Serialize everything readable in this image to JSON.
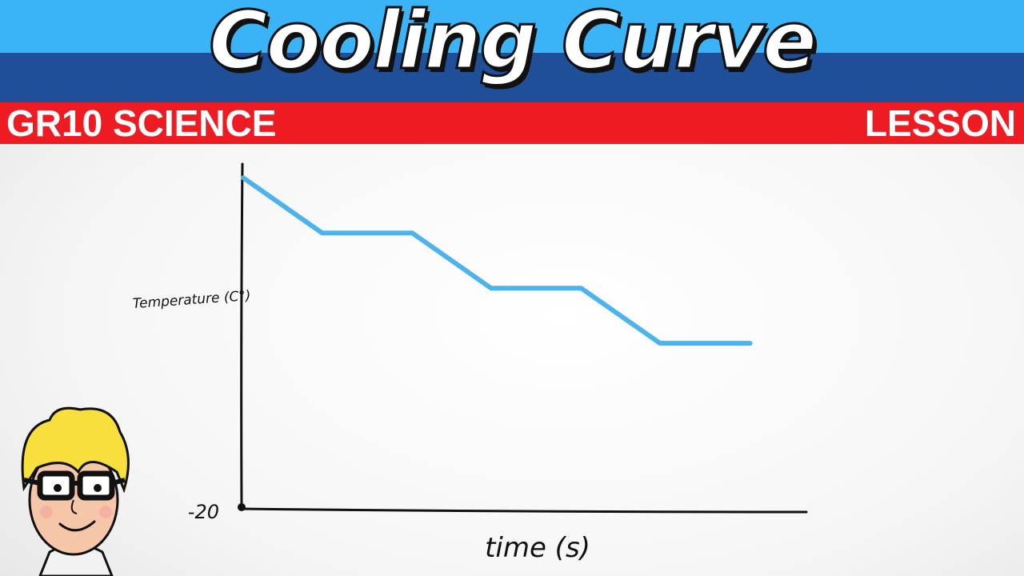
{
  "header": {
    "title": "Cooling Curve",
    "left_tag": "GR10 SCIENCE",
    "right_tag": "LESSON",
    "colors": {
      "light_band": "#3ab4f6",
      "dark_band": "#1e4f98",
      "red_band": "#ee1c22"
    }
  },
  "chart_data": {
    "type": "line",
    "title": "Cooling Curve",
    "xlabel": "time (s)",
    "ylabel": "Temperature (C°)",
    "y_tick_labels": [
      "-20"
    ],
    "series": [
      {
        "color": "#4db3ec",
        "points": [
          [
            0,
            100
          ],
          [
            7,
            80
          ],
          [
            15,
            80
          ],
          [
            22,
            60
          ],
          [
            30,
            60
          ],
          [
            37,
            40
          ],
          [
            45,
            40
          ]
        ]
      }
    ],
    "xlim": [
      0,
      50
    ],
    "ylim": [
      -20,
      105
    ],
    "grid": false,
    "legend": "none"
  },
  "mascot": {
    "icon": "cartoon-boy-with-glasses"
  }
}
